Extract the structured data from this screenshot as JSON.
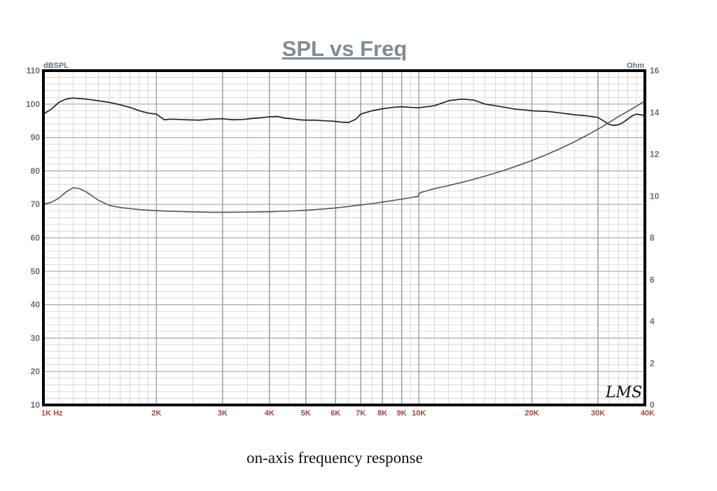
{
  "chart_data": {
    "type": "line",
    "title": "SPL vs Freq",
    "caption": "on-axis frequency response",
    "signature": "LMS",
    "x_scale": "log",
    "xlim": [
      1000,
      40000
    ],
    "x_ticks": [
      {
        "value": 1000,
        "label": "1K  Hz"
      },
      {
        "value": 2000,
        "label": "2K"
      },
      {
        "value": 3000,
        "label": "3K"
      },
      {
        "value": 4000,
        "label": "4K"
      },
      {
        "value": 5000,
        "label": "5K"
      },
      {
        "value": 6000,
        "label": "6K"
      },
      {
        "value": 7000,
        "label": "7K"
      },
      {
        "value": 8000,
        "label": "8K"
      },
      {
        "value": 9000,
        "label": "9K"
      },
      {
        "value": 10000,
        "label": "10K"
      },
      {
        "value": 20000,
        "label": "20K"
      },
      {
        "value": 30000,
        "label": "30K"
      },
      {
        "value": 40000,
        "label": "40K"
      }
    ],
    "y_left": {
      "label": "dBSPL",
      "lim": [
        10,
        110
      ],
      "ticks": [
        10,
        20,
        30,
        40,
        50,
        60,
        70,
        80,
        90,
        100,
        110
      ]
    },
    "y_right": {
      "label": "Ohm",
      "lim": [
        0,
        16
      ],
      "ticks": [
        0,
        2,
        4,
        6,
        8,
        10,
        12,
        14,
        16
      ]
    },
    "grid": true,
    "colors": {
      "frame": "#000000",
      "grid": "#bdbdbd",
      "spl": "#222222",
      "impedance": "#555555"
    },
    "series": [
      {
        "axis": "left",
        "x": [
          1000,
          1050,
          1100,
          1150,
          1200,
          1300,
          1400,
          1500,
          1600,
          1700,
          1800,
          1900,
          2000,
          2100,
          2200,
          2400,
          2600,
          2800,
          3000,
          3200,
          3400,
          3600,
          3800,
          4000,
          4200,
          4400,
          4600,
          4800,
          5000,
          5300,
          5600,
          5900,
          6200,
          6500,
          6800,
          7000,
          7500,
          8000,
          8500,
          9000,
          9500,
          10000,
          11000,
          12000,
          13000,
          14000,
          15000,
          16000,
          17000,
          18000,
          19000,
          20000,
          22000,
          24000,
          26000,
          28000,
          30000,
          31000,
          32000,
          33000,
          34000,
          35000,
          36000,
          37000,
          38000,
          39000,
          40000
        ],
        "values": [
          97,
          98.5,
          100.5,
          101.5,
          101.8,
          101.5,
          101,
          100.5,
          99.8,
          99,
          98,
          97.3,
          97,
          95.3,
          95.5,
          95.3,
          95.2,
          95.5,
          95.6,
          95.3,
          95.4,
          95.7,
          95.9,
          96.2,
          96.3,
          95.8,
          95.6,
          95.3,
          95.2,
          95.2,
          95,
          94.9,
          94.6,
          94.5,
          95.5,
          97,
          98,
          98.6,
          99,
          99.2,
          99,
          98.9,
          99.5,
          101,
          101.5,
          101.2,
          100,
          99.5,
          99,
          98.5,
          98.3,
          98,
          97.8,
          97.3,
          96.8,
          96.5,
          96,
          95,
          94,
          93.6,
          93.8,
          94.5,
          95.5,
          96.5,
          97,
          96.8,
          96.5
        ]
      },
      {
        "axis": "right",
        "x": [
          1000,
          1050,
          1100,
          1150,
          1200,
          1250,
          1300,
          1350,
          1400,
          1500,
          1600,
          1700,
          1800,
          2000,
          2200,
          2500,
          2800,
          3000,
          3500,
          4000,
          4500,
          5000,
          5500,
          6000,
          6500,
          7000,
          7500,
          8000,
          8500,
          9000,
          9500,
          9950,
          10050,
          11000,
          12000,
          13000,
          14000,
          15000,
          16000,
          17000,
          18000,
          19000,
          20000,
          22000,
          24000,
          26000,
          28000,
          30000,
          32000,
          34000,
          36000,
          38000,
          40000
        ],
        "values": [
          9.6,
          9.7,
          9.9,
          10.2,
          10.4,
          10.35,
          10.2,
          10.0,
          9.8,
          9.55,
          9.45,
          9.4,
          9.35,
          9.3,
          9.27,
          9.24,
          9.22,
          9.22,
          9.23,
          9.25,
          9.28,
          9.32,
          9.37,
          9.43,
          9.5,
          9.57,
          9.64,
          9.71,
          9.78,
          9.85,
          9.92,
          9.98,
          10.15,
          10.35,
          10.5,
          10.65,
          10.8,
          10.95,
          11.1,
          11.25,
          11.4,
          11.55,
          11.7,
          12.0,
          12.3,
          12.6,
          12.9,
          13.2,
          13.5,
          13.8,
          14.05,
          14.3,
          14.55
        ]
      }
    ]
  }
}
